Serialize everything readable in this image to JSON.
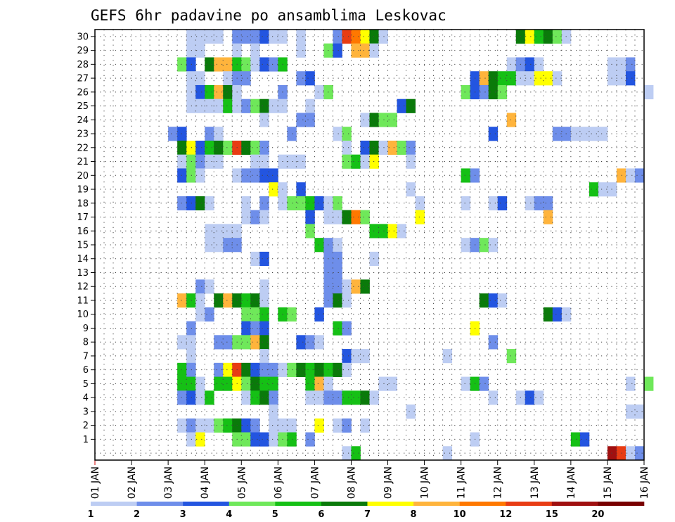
{
  "chart_data": {
    "type": "heatmap",
    "title": "GEFS 6hr padavine po ansamblima Leskovac",
    "xlabel": "",
    "ylabel": "",
    "xlim": [
      0,
      60
    ],
    "ylim": [
      0,
      30
    ],
    "x_tick_labels": [
      "01 JAN",
      "02 JAN",
      "03 JAN",
      "04 JAN",
      "05 JAN",
      "06 JAN",
      "07 JAN",
      "08 JAN",
      "09 JAN",
      "10 JAN",
      "11 JAN",
      "12 JAN",
      "13 JAN",
      "14 JAN",
      "15 JAN",
      "16 JAN"
    ],
    "x_tick_days": [
      0,
      4,
      8,
      12,
      16,
      20,
      24,
      28,
      32,
      36,
      40,
      44,
      48,
      52,
      56,
      60
    ],
    "y_tick_labels": [
      "1",
      "2",
      "3",
      "4",
      "5",
      "6",
      "7",
      "8",
      "9",
      "10",
      "11",
      "12",
      "13",
      "14",
      "15",
      "16",
      "17",
      "18",
      "19",
      "20",
      "21",
      "22",
      "23",
      "24",
      "25",
      "26",
      "27",
      "28",
      "29",
      "30"
    ],
    "grid": "dotted",
    "colorbar": {
      "labels": [
        "1",
        "2",
        "3",
        "4",
        "5",
        "6",
        "7",
        "8",
        "10",
        "12",
        "15",
        "20"
      ],
      "colors": [
        "#bdcdf3",
        "#6e8eea",
        "#2355e0",
        "#6fe85a",
        "#15c015",
        "#0a7a0a",
        "#ffff00",
        "#ffb43c",
        "#ff7800",
        "#e83c14",
        "#a01010",
        "#780000"
      ]
    },
    "cell_encoding": "member:start_step-end_step:color_index (steps are 6-hour periods; color index into colorbar.colors)",
    "cells": [
      "30:10-14:0",
      "30:15-18:1",
      "30:18-19:2",
      "30:19-21:0",
      "30:22-23:0",
      "30:26-27:1",
      "30:27-28:9",
      "30:28-29:8",
      "30:29-30:6",
      "30:30-31:5",
      "30:31-32:0",
      "30:46-47:5",
      "30:47-48:6",
      "30:48-49:4",
      "30:49-50:5",
      "30:50-51:3",
      "30:51-52:0",
      "29:10-12:0",
      "29:15-16:0",
      "29:17-18:0",
      "29:22-23:0",
      "29:25-26:3",
      "29:26-27:2",
      "29:28-30:7",
      "29:30-31:0",
      "28:9-10:3",
      "28:10-11:2",
      "28:12-13:5",
      "28:13-15:7",
      "28:15-16:4",
      "28:16-17:3",
      "28:17-18:0",
      "28:18-19:2",
      "28:19-20:1",
      "28:20-21:4",
      "28:45-46:0",
      "28:46-47:1",
      "28:47-48:2",
      "28:48-49:0",
      "28:56-58:0",
      "28:58-59:1",
      "27:10-12:0",
      "27:14-15:0",
      "27:15-17:1",
      "27:22-23:1",
      "27:23-24:2",
      "27:41-42:2",
      "27:42-43:7",
      "27:43-44:5",
      "27:44-46:4",
      "27:46-48:0",
      "27:48-50:6",
      "27:50-51:0",
      "27:56-58:0",
      "27:58-59:2",
      "26:10-11:0",
      "26:11-12:2",
      "26:12-13:4",
      "26:13-14:7",
      "26:14-15:5",
      "26:15-16:0",
      "26:20-21:1",
      "26:24-25:0",
      "26:25-26:3",
      "26:40-41:3",
      "26:41-42:2",
      "26:42-43:1",
      "26:43-44:5",
      "26:44-45:3",
      "26:60-61:0",
      "25:10-14:0",
      "25:14-15:4",
      "25:15-16:0",
      "25:16-17:1",
      "25:17-18:3",
      "25:18-19:5",
      "25:19-21:0",
      "25:23-24:0",
      "25:33-34:2",
      "25:34-35:5",
      "24:18-19:0",
      "24:22-24:1",
      "24:29-30:0",
      "24:30-31:5",
      "24:31-33:3",
      "24:45-46:7",
      "23:8-9:1",
      "23:9-10:2",
      "23:12-13:1",
      "23:13-14:0",
      "23:21-22:1",
      "23:26-27:0",
      "23:27-28:3",
      "23:43-44:2",
      "23:50-52:1",
      "23:52-56:0",
      "22:9-10:5",
      "22:10-11:6",
      "22:11-12:2",
      "22:12-13:4",
      "22:13-14:5",
      "22:14-15:3",
      "22:15-16:9",
      "22:16-17:5",
      "22:17-18:3",
      "22:18-19:1",
      "22:27-28:0",
      "22:29-30:2",
      "22:30-31:5",
      "22:31-32:0",
      "22:32-33:7",
      "22:33-34:3",
      "22:34-35:1",
      "21:9-10:0",
      "21:10-11:3",
      "21:11-12:1",
      "21:12-14:0",
      "21:17-19:0",
      "21:20-23:0",
      "21:27-28:3",
      "21:28-29:4",
      "21:29-30:0",
      "21:30-31:6",
      "21:34-35:0",
      "20:9-10:2",
      "20:10-11:3",
      "20:11-12:0",
      "20:15-16:0",
      "20:16-18:1",
      "20:18-20:2",
      "20:40-41:4",
      "20:41-42:1",
      "20:57-58:7",
      "20:58-59:0",
      "20:59-60:1",
      "19:19-20:6",
      "19:20-21:0",
      "19:22-23:2",
      "19:34-35:0",
      "19:54-55:4",
      "19:55-57:0",
      "18:9-10:1",
      "18:10-11:2",
      "18:11-12:5",
      "18:12-13:0",
      "18:16-17:0",
      "18:18-19:1",
      "18:20-21:0",
      "18:21-23:3",
      "18:23-24:4",
      "18:24-25:2",
      "18:25-26:0",
      "18:26-27:3",
      "18:35-36:0",
      "18:40-41:0",
      "18:43-44:0",
      "18:44-45:2",
      "18:47-48:0",
      "18:48-50:1",
      "17:16-17:0",
      "17:17-18:1",
      "17:18-19:0",
      "17:23-24:2",
      "17:25-26:0",
      "17:26-27:0",
      "17:27-28:5",
      "17:28-29:8",
      "17:29-30:3",
      "17:35-36:6",
      "17:49-50:7",
      "16:12-16:0",
      "16:23-24:3",
      "16:30-32:4",
      "16:32-33:6",
      "16:33-34:0",
      "15:12-14:0",
      "15:14-16:1",
      "15:24-25:4",
      "15:25-26:1",
      "15:26-27:0",
      "15:40-41:0",
      "15:41-42:1",
      "15:42-43:3",
      "15:43-44:0",
      "14:17-18:0",
      "14:18-19:2",
      "14:25-27:1",
      "14:30-31:0",
      "13:25-27:1",
      "12:11-12:1",
      "12:12-13:0",
      "12:18-19:0",
      "12:25-27:1",
      "12:27-28:0",
      "12:28-29:7",
      "12:29-30:5",
      "11:9-10:7",
      "11:10-11:4",
      "11:11-12:0",
      "11:13-14:5",
      "11:14-15:7",
      "11:15-16:5",
      "11:16-17:4",
      "11:17-18:5",
      "11:18-19:0",
      "11:25-26:1",
      "11:26-27:5",
      "11:27-28:0",
      "11:42-43:5",
      "11:43-44:2",
      "11:44-45:0",
      "10:11-12:0",
      "10:12-13:1",
      "10:16-18:3",
      "10:18-19:4",
      "10:20-21:4",
      "10:21-22:3",
      "10:24-25:2",
      "10:49-50:5",
      "10:50-51:2",
      "10:51-52:0",
      "9:10-11:1",
      "9:16-17:2",
      "9:17-18:1",
      "9:18-19:2",
      "9:26-27:4",
      "9:27-28:1",
      "9:41-42:6",
      "8:9-11:0",
      "8:13-15:1",
      "8:15-17:3",
      "8:17-18:7",
      "8:18-19:5",
      "8:22-23:2",
      "8:23-24:1",
      "8:24-25:0",
      "8:43-44:1",
      "7:10-11:0",
      "7:18-19:0",
      "7:27-28:2",
      "7:28-30:0",
      "7:38-39:0",
      "7:45-46:3",
      "6:9-10:4",
      "6:10-11:1",
      "6:13-14:1",
      "6:14-15:6",
      "6:15-16:9",
      "6:16-17:5",
      "6:17-18:2",
      "6:18-20:1",
      "6:20-21:0",
      "6:21-22:3",
      "6:22-23:5",
      "6:23-24:4",
      "6:24-25:5",
      "6:25-26:4",
      "6:26-27:5",
      "6:27-28:0",
      "5:9-11:4",
      "5:11-12:0",
      "5:13-15:4",
      "5:15-16:6",
      "5:16-17:3",
      "5:17-18:5",
      "5:18-20:4",
      "5:23-24:4",
      "5:24-25:7",
      "5:25-26:0",
      "5:31-33:0",
      "5:40-41:0",
      "5:41-42:4",
      "5:42-43:1",
      "5:58-59:0",
      "5:60-61:3",
      "4:9-10:1",
      "4:10-11:2",
      "4:11-12:0",
      "4:12-13:4",
      "4:16-17:0",
      "4:17-18:4",
      "4:18-19:5",
      "4:19-20:1",
      "4:23-25:0",
      "4:25-27:1",
      "4:27-29:4",
      "4:29-30:5",
      "4:30-31:0",
      "4:43-44:0",
      "4:46-47:0",
      "4:47-48:2",
      "4:48-49:0",
      "3:19-20:0",
      "3:34-35:0",
      "3:58-60:0",
      "2:9-10:0",
      "2:10-11:1",
      "2:11-13:0",
      "2:13-14:3",
      "2:14-15:4",
      "2:15-16:5",
      "2:16-17:2",
      "2:17-18:1",
      "2:19-22:0",
      "2:24-25:6",
      "2:26-27:0",
      "2:27-28:1",
      "2:29-30:0",
      "1:10-11:0",
      "1:11-12:6",
      "1:15-17:3",
      "1:17-19:2",
      "1:19-20:0",
      "1:20-21:3",
      "1:21-22:4",
      "1:23-24:1",
      "1:41-42:0",
      "1:52-53:4",
      "1:53-54:2",
      "0:27-28:0",
      "0:28-29:4",
      "0:38-39:0",
      "0:56-57:10",
      "0:57-58:9",
      "0:58-59:0",
      "0:59-60:1"
    ]
  }
}
